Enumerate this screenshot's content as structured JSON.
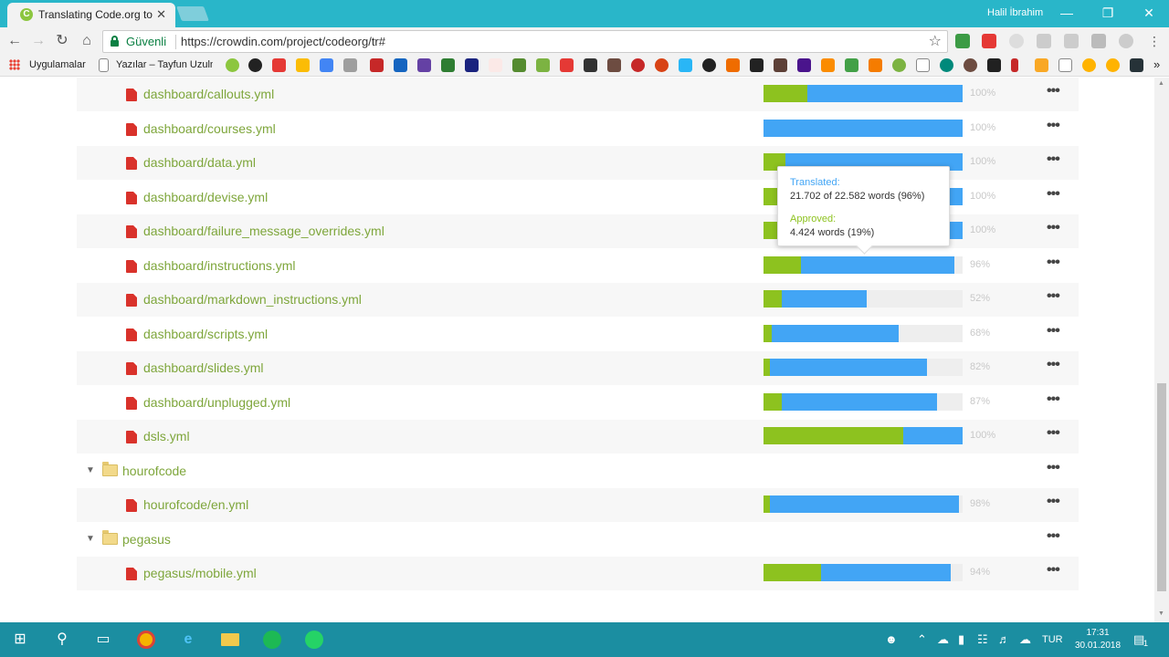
{
  "browser": {
    "tab_title": "Translating Code.org to T",
    "tab_close": "✕",
    "user_name": "Halil İbrahim",
    "secure_label": "Güvenli",
    "url": "https://crowdin.com/project/codeorg/tr#",
    "bookmarks": {
      "apps_label": "Uygulamalar",
      "item1_label": "Yazılar – Tayfun Uzuln"
    }
  },
  "files": [
    {
      "type": "file",
      "name": "dashboard/callouts.yml",
      "approved": 0.22,
      "translated": 1.0,
      "percent": "100%"
    },
    {
      "type": "file",
      "name": "dashboard/courses.yml",
      "approved": 0.0,
      "translated": 1.0,
      "percent": "100%"
    },
    {
      "type": "file",
      "name": "dashboard/data.yml",
      "approved": 0.11,
      "translated": 1.0,
      "percent": "100%"
    },
    {
      "type": "file",
      "name": "dashboard/devise.yml",
      "approved": 0.11,
      "translated": 1.0,
      "percent": "100%"
    },
    {
      "type": "file",
      "name": "dashboard/failure_message_overrides.yml",
      "approved": 0.07,
      "translated": 1.0,
      "percent": "100%"
    },
    {
      "type": "file",
      "name": "dashboard/instructions.yml",
      "approved": 0.19,
      "translated": 0.96,
      "percent": "96%"
    },
    {
      "type": "file",
      "name": "dashboard/markdown_instructions.yml",
      "approved": 0.09,
      "translated": 0.52,
      "percent": "52%"
    },
    {
      "type": "file",
      "name": "dashboard/scripts.yml",
      "approved": 0.04,
      "translated": 0.68,
      "percent": "68%"
    },
    {
      "type": "file",
      "name": "dashboard/slides.yml",
      "approved": 0.03,
      "translated": 0.82,
      "percent": "82%"
    },
    {
      "type": "file",
      "name": "dashboard/unplugged.yml",
      "approved": 0.09,
      "translated": 0.87,
      "percent": "87%"
    },
    {
      "type": "file",
      "name": "dsls.yml",
      "approved": 0.7,
      "translated": 1.0,
      "percent": "100%"
    },
    {
      "type": "folder",
      "name": "hourofcode"
    },
    {
      "type": "file",
      "name": "hourofcode/en.yml",
      "approved": 0.03,
      "translated": 0.98,
      "percent": "98%"
    },
    {
      "type": "folder",
      "name": "pegasus"
    },
    {
      "type": "file",
      "name": "pegasus/mobile.yml",
      "approved": 0.29,
      "translated": 0.94,
      "percent": "94%"
    }
  ],
  "more_label": "•••",
  "folder_toggle": "▼",
  "tooltip": {
    "translated_label": "Translated:",
    "translated_value": "21.702 of 22.582 words (96%)",
    "approved_label": "Approved:",
    "approved_value": "4.424 words (19%)"
  },
  "colors": {
    "translated": "#42a5f5",
    "approved": "#8dc21f",
    "link": "#7ea63b"
  },
  "taskbar": {
    "language": "TUR",
    "time": "17:31",
    "date": "30.01.2018",
    "notifications": "1"
  }
}
